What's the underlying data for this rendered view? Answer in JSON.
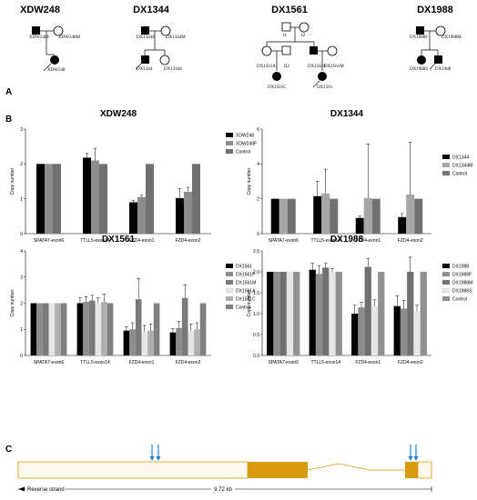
{
  "panels": {
    "a": "A",
    "b": "B",
    "c": "C"
  },
  "pedigrees": [
    {
      "family": "XDW248",
      "father": "XDW248F",
      "mother": "XDW248M",
      "child": "XDW248"
    },
    {
      "family": "DX1344",
      "father": "DX1344F",
      "mother": "DX1344M",
      "child1": "DX1344",
      "child2": "DX1344S"
    },
    {
      "family": "DX1561",
      "gp1": "I1",
      "gp2": "I2",
      "s1": "DX1561A",
      "s2": "II2",
      "s3": "DX1561F",
      "s4": "DX1561M",
      "c1": "DX1561C",
      "c2": "DX1561"
    },
    {
      "family": "DX1988",
      "father": "DX1988F",
      "mother": "DX1988M",
      "child1": "DX1988S",
      "child2": "DX1988"
    }
  ],
  "chart_data": [
    {
      "type": "bar",
      "title": "XDW248",
      "ylabel": "Copy number",
      "ylim": [
        0,
        3
      ],
      "yticks": [
        "0",
        "1",
        "2",
        "3"
      ],
      "categories": [
        "SPATA7-exon6",
        "TTLL5-exon14",
        "FZD4-exon1",
        "FZD4-exon2"
      ],
      "legend_position": "right",
      "series": [
        {
          "name": "XDW248",
          "color": "#000000",
          "values": [
            2.0,
            2.18,
            0.9,
            1.02
          ],
          "errors": [
            0,
            0.12,
            0.05,
            0.27
          ]
        },
        {
          "name": "XDW248F",
          "color": "#8c8c8c",
          "values": [
            2.0,
            2.1,
            1.05,
            1.2
          ],
          "errors": [
            0,
            0.35,
            0.05,
            0.13
          ]
        },
        {
          "name": "Control",
          "color": "#707070",
          "values": [
            2.0,
            2.0,
            2.0,
            2.0
          ],
          "errors": [
            0,
            0,
            0,
            0
          ]
        }
      ]
    },
    {
      "type": "bar",
      "title": "DX1344",
      "ylabel": "Copy number",
      "ylim": [
        0,
        6
      ],
      "yticks": [
        "0",
        "2",
        "4",
        "6"
      ],
      "categories": [
        "SPATA7-exon6",
        "TTLL5-exon14",
        "FZD4-exon1",
        "FZD4-exon2"
      ],
      "legend_position": "right",
      "series": [
        {
          "name": "DX1344",
          "color": "#000000",
          "values": [
            2.0,
            2.15,
            0.9,
            0.95
          ],
          "errors": [
            0,
            0.85,
            0.1,
            0.2
          ]
        },
        {
          "name": "DX1344M",
          "color": "#a6a6a6",
          "values": [
            2.0,
            2.3,
            2.05,
            2.25
          ],
          "errors": [
            0,
            1.4,
            3.1,
            3.0
          ]
        },
        {
          "name": "Control",
          "color": "#707070",
          "values": [
            2.0,
            2.0,
            2.0,
            2.0
          ],
          "errors": [
            0,
            0,
            0,
            0
          ]
        }
      ]
    },
    {
      "type": "bar",
      "title": "DX1561",
      "ylabel": "Copy number",
      "ylim": [
        0,
        4
      ],
      "yticks": [
        "0",
        "1",
        "2",
        "3",
        "4"
      ],
      "categories": [
        "SPATA7-exon6",
        "TTLL5-exon14",
        "FZD4-exon1",
        "FZD4-exon2"
      ],
      "legend_position": "right",
      "series": [
        {
          "name": "DX1561",
          "color": "#000000",
          "values": [
            2.0,
            2.0,
            0.95,
            0.88
          ],
          "errors": [
            0,
            0.2,
            0.15,
            0.15
          ]
        },
        {
          "name": "DX1561F",
          "color": "#8c8c8c",
          "values": [
            2.0,
            2.05,
            1.0,
            1.05
          ],
          "errors": [
            0,
            0.2,
            0.25,
            0.25
          ]
        },
        {
          "name": "DX1561M",
          "color": "#7a7a7a",
          "values": [
            2.0,
            2.1,
            2.15,
            2.2
          ],
          "errors": [
            0,
            0.2,
            0.8,
            0.5
          ]
        },
        {
          "name": "DX1561A",
          "color": "#e6e6e6",
          "values": [
            2.0,
            2.0,
            0.9,
            0.95
          ],
          "errors": [
            0,
            0.2,
            0.25,
            0.25
          ]
        },
        {
          "name": "DX1561C",
          "color": "#b0b0b0",
          "values": [
            2.0,
            2.05,
            0.95,
            1.0
          ],
          "errors": [
            0,
            0.3,
            0.25,
            0.25
          ]
        },
        {
          "name": "Control",
          "color": "#808080",
          "values": [
            2.0,
            2.0,
            2.0,
            2.0
          ],
          "errors": [
            0,
            0,
            0,
            0
          ]
        }
      ]
    },
    {
      "type": "bar",
      "title": "DX1988",
      "ylabel": "Copy number",
      "ylim": [
        0,
        2.5
      ],
      "yticks": [
        "0.0",
        "0.5",
        "1.0",
        "1.5",
        "2.0",
        "2.5"
      ],
      "categories": [
        "SPATA7-exon6",
        "TTLL5-exon14",
        "FZD4-exon1",
        "FZD4-exon2"
      ],
      "legend_position": "right",
      "series": [
        {
          "name": "DX1988",
          "color": "#000000",
          "values": [
            2.0,
            2.05,
            1.0,
            1.18
          ],
          "errors": [
            0,
            0.15,
            0.2,
            0.25
          ]
        },
        {
          "name": "DX1988F",
          "color": "#8c8c8c",
          "values": [
            2.0,
            1.95,
            1.15,
            1.12
          ],
          "errors": [
            0,
            0.2,
            0.12,
            0.2
          ]
        },
        {
          "name": "DX1988M",
          "color": "#707070",
          "values": [
            2.0,
            2.1,
            2.12,
            2.0
          ],
          "errors": [
            0,
            0.1,
            0.2,
            0.35
          ]
        },
        {
          "name": "DX1988S",
          "color": "#e6e6e6",
          "values": [
            2.0,
            1.98,
            1.18,
            1.05
          ],
          "errors": [
            0,
            0.1,
            0.15,
            0.15
          ]
        },
        {
          "name": "Control",
          "color": "#909090",
          "values": [
            2.0,
            2.0,
            2.0,
            2.0
          ],
          "errors": [
            0,
            0,
            0,
            0
          ]
        }
      ]
    }
  ],
  "gene": {
    "strand": "Reverse strand",
    "length": "9.72 kb",
    "exon_color": "#d99a0f",
    "arrow_color": "#1e7fd6"
  }
}
